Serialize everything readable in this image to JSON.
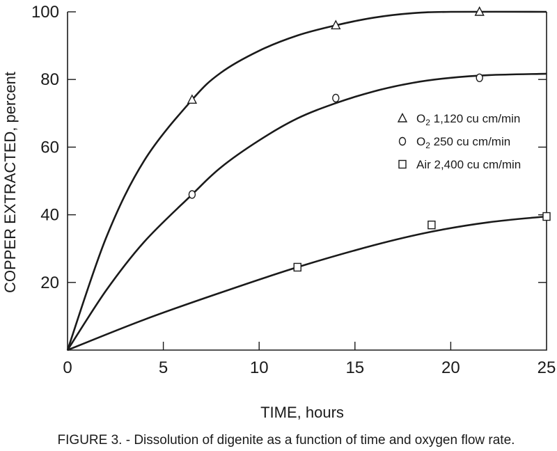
{
  "chart_data": {
    "type": "line",
    "xlabel": "TIME, hours",
    "ylabel": "COPPER EXTRACTED, percent",
    "xlim": [
      0,
      25
    ],
    "ylim": [
      0,
      100
    ],
    "x_ticks": [
      0,
      5,
      10,
      15,
      20,
      25
    ],
    "y_ticks": [
      20,
      40,
      60,
      80,
      100
    ],
    "grid": false,
    "legend_position": "right",
    "series": [
      {
        "name": "O2 1,120 cu cm/min",
        "legend_main": "O",
        "legend_sub": "2",
        "legend_rest": " 1,120 cu cm/min",
        "marker": "triangle",
        "points": [
          [
            6.5,
            74
          ],
          [
            14,
            96
          ],
          [
            21.5,
            100
          ]
        ],
        "curve": [
          [
            0,
            0
          ],
          [
            2,
            33
          ],
          [
            4,
            56
          ],
          [
            6.5,
            74
          ],
          [
            8,
            82
          ],
          [
            10,
            88.5
          ],
          [
            12,
            93
          ],
          [
            14,
            96
          ],
          [
            16,
            98.3
          ],
          [
            18,
            99.6
          ],
          [
            20,
            100
          ],
          [
            25,
            100
          ]
        ]
      },
      {
        "name": "O2 250 cu cm/min",
        "legend_main": "O",
        "legend_sub": "2",
        "legend_rest": " 250 cu cm/min",
        "marker": "circle",
        "points": [
          [
            6.5,
            46
          ],
          [
            14,
            74.5
          ],
          [
            21.5,
            80.5
          ]
        ],
        "curve": [
          [
            0,
            0
          ],
          [
            2,
            17.5
          ],
          [
            4,
            32
          ],
          [
            6.5,
            46
          ],
          [
            8,
            54
          ],
          [
            10,
            62
          ],
          [
            12,
            68.5
          ],
          [
            14,
            73
          ],
          [
            16,
            76.5
          ],
          [
            18,
            79
          ],
          [
            20,
            80.5
          ],
          [
            22,
            81.3
          ],
          [
            25,
            81.7
          ]
        ]
      },
      {
        "name": "Air 2,400 cu cm/min",
        "legend_main": "Air 2,400 cu cm/min",
        "legend_sub": "",
        "legend_rest": "",
        "marker": "square",
        "points": [
          [
            12,
            24.5
          ],
          [
            19,
            37
          ],
          [
            25,
            39.5
          ]
        ],
        "curve": [
          [
            0,
            0
          ],
          [
            4,
            9
          ],
          [
            8,
            17
          ],
          [
            12,
            24.5
          ],
          [
            16,
            31
          ],
          [
            19,
            35
          ],
          [
            22,
            37.8
          ],
          [
            25,
            39.5
          ]
        ]
      }
    ]
  },
  "caption": "FIGURE 3. - Dissolution of digenite as a function of time and oxygen flow rate."
}
